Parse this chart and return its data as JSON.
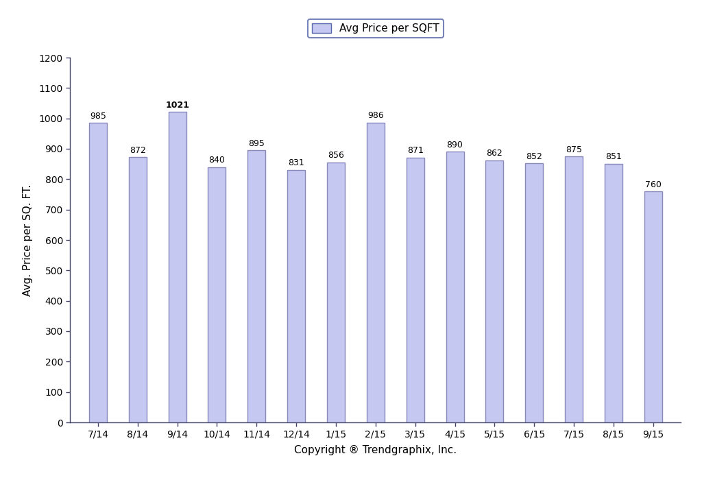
{
  "categories": [
    "7/14",
    "8/14",
    "9/14",
    "10/14",
    "11/14",
    "12/14",
    "1/15",
    "2/15",
    "3/15",
    "4/15",
    "5/15",
    "6/15",
    "7/15",
    "8/15",
    "9/15"
  ],
  "values": [
    985,
    872,
    1021,
    840,
    895,
    831,
    856,
    986,
    871,
    890,
    862,
    852,
    875,
    851,
    760
  ],
  "bar_color": "#c5c8f0",
  "bar_edgecolor": "#8888bb",
  "ylabel": "Avg. Price per SQ. FT.",
  "xlabel": "Copyright ® Trendgraphix, Inc.",
  "ylim": [
    0,
    1200
  ],
  "yticks": [
    0,
    100,
    200,
    300,
    400,
    500,
    600,
    700,
    800,
    900,
    1000,
    1100,
    1200
  ],
  "legend_label": "Avg Price per SQFT",
  "legend_facecolor": "#c5c8f0",
  "legend_edgecolor": "#5566aa",
  "bar_width": 0.45,
  "label_fontsize": 9,
  "axis_label_fontsize": 11,
  "tick_fontsize": 10,
  "background_color": "#ffffff"
}
